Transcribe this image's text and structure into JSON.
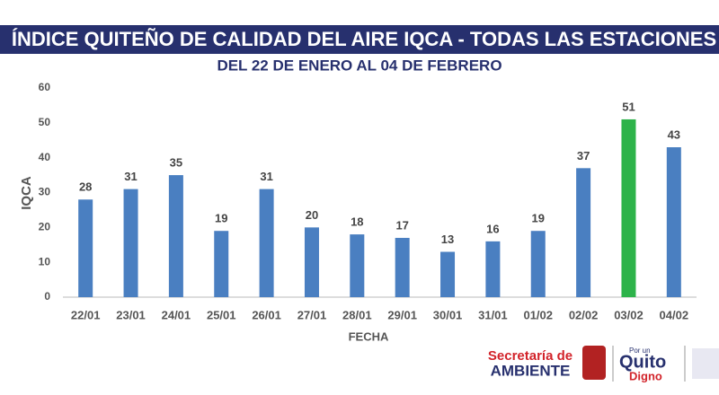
{
  "chart_data": {
    "type": "bar",
    "title": "ÍNDICE QUITEÑO DE CALIDAD DEL AIRE IQCA - TODAS LAS ESTACIONES",
    "subtitle": "DEL 22 DE ENERO AL 04 DE FEBRERO",
    "x_label": "FECHA",
    "y_label": "IQCA",
    "categories": [
      "22/01",
      "23/01",
      "24/01",
      "25/01",
      "26/01",
      "27/01",
      "28/01",
      "29/01",
      "30/01",
      "31/01",
      "01/02",
      "02/02",
      "03/02",
      "04/02"
    ],
    "values": [
      28,
      31,
      35,
      19,
      31,
      20,
      18,
      17,
      13,
      16,
      19,
      37,
      51,
      43
    ],
    "colors": [
      "#4a7fc1",
      "#4a7fc1",
      "#4a7fc1",
      "#4a7fc1",
      "#4a7fc1",
      "#4a7fc1",
      "#4a7fc1",
      "#4a7fc1",
      "#4a7fc1",
      "#4a7fc1",
      "#4a7fc1",
      "#4a7fc1",
      "#2db34a",
      "#4a7fc1"
    ],
    "ylim": [
      0,
      60
    ],
    "yticks": [
      0,
      10,
      20,
      30,
      40,
      50,
      60
    ],
    "grid": false
  },
  "footer": {
    "logo1_top": "Secretaría de",
    "logo1_bottom": "AMBIENTE",
    "logo2_top": "Por un",
    "logo2_mid": "Quito",
    "logo2_bottom": "Digno"
  }
}
